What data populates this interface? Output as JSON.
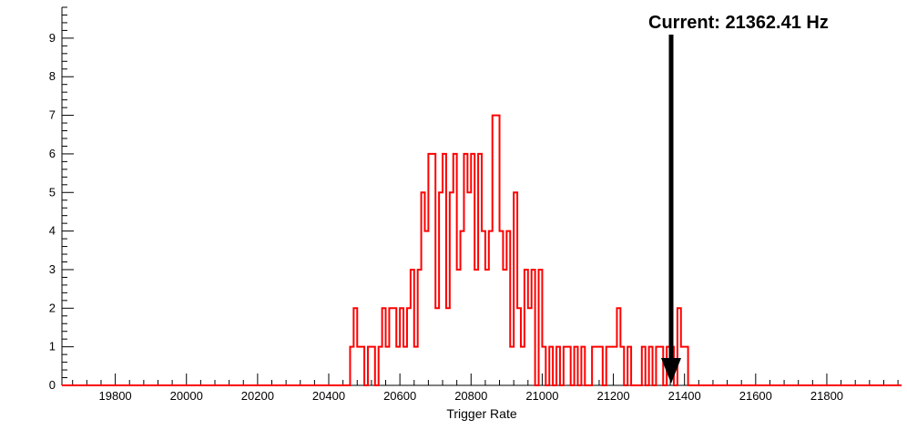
{
  "chart_data": {
    "type": "bar",
    "subtype": "step-histogram",
    "title": "",
    "xlabel": "Trigger Rate",
    "ylabel": "",
    "xlim": [
      19650,
      22010
    ],
    "ylim": [
      0,
      9.8
    ],
    "grid": false,
    "legend_position": "none",
    "x_ticks_major": [
      19800,
      20000,
      20200,
      20400,
      20600,
      20800,
      21000,
      21200,
      21400,
      21600,
      21800
    ],
    "x_minor_step": 40,
    "y_ticks_major": [
      0,
      1,
      2,
      3,
      4,
      5,
      6,
      7,
      8,
      9
    ],
    "y_minor_step": 0.2,
    "bin_start": 20450,
    "bin_width": 10,
    "counts": [
      0,
      1,
      2,
      1,
      1,
      0,
      1,
      1,
      0,
      1,
      2,
      1,
      2,
      2,
      1,
      2,
      1,
      2,
      3,
      1,
      3,
      5,
      4,
      6,
      6,
      2,
      5,
      6,
      2,
      5,
      6,
      3,
      4,
      6,
      5,
      6,
      3,
      6,
      4,
      3,
      4,
      7,
      7,
      4,
      3,
      4,
      1,
      5,
      2,
      1,
      3,
      2,
      3,
      0,
      3,
      1,
      0,
      1,
      0,
      1,
      0,
      1,
      1,
      0,
      1,
      0,
      1,
      0,
      0,
      1,
      1,
      1,
      0,
      1,
      1,
      1,
      2,
      1,
      0,
      1,
      0,
      0,
      0,
      1,
      0,
      1,
      0,
      1,
      1,
      0,
      1,
      1,
      0,
      2,
      1,
      1,
      0
    ],
    "annotation": {
      "label": "Current: 21362.41 Hz",
      "x": 21362.41,
      "arrow": "down"
    },
    "colors": {
      "histogram": "#ff0000",
      "axis": "#000000",
      "arrow": "#000000",
      "text": "#000000",
      "background": "#ffffff"
    }
  }
}
